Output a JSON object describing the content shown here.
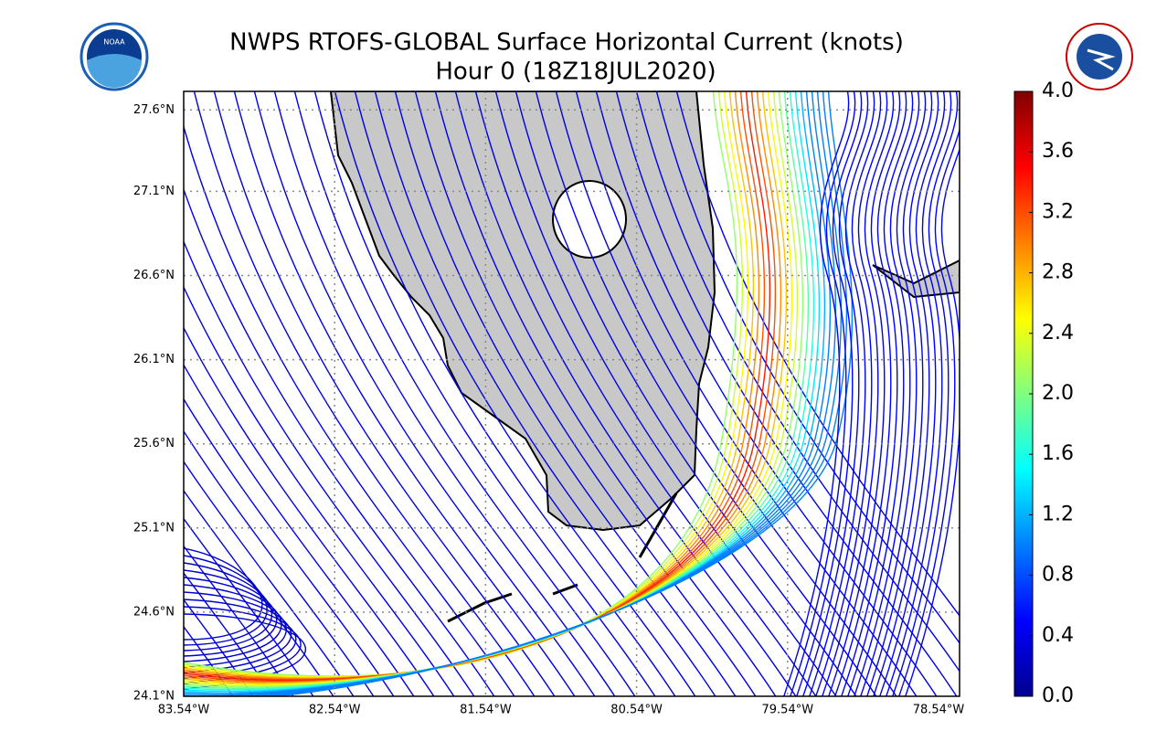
{
  "map": {
    "title": [
      "NWPS RTOFS-GLOBAL Surface Horizontal Current (knots)",
      "Hour 0 (18Z18JUL2020)"
    ],
    "lat_labels": [
      "24.1°N",
      "24.6°N",
      "25.1°N",
      "25.6°N",
      "26.1°N",
      "26.6°N",
      "27.1°N",
      "27.6°N"
    ],
    "lon_labels": [
      "83.54°W",
      "82.54°W",
      "81.54°W",
      "80.54°W",
      "79.54°W",
      "78.54°W"
    ],
    "colorbar": {
      "lim": [
        0,
        4
      ],
      "ticks": [
        {
          "value": 0,
          "label": "0.0"
        },
        0.4,
        0.8,
        1.2,
        1.6,
        {
          "value": 2,
          "label": "2.0"
        },
        2.4,
        2.8,
        3.2,
        3.6,
        {
          "value": 4,
          "label": "4.0"
        }
      ]
    }
  }
}
